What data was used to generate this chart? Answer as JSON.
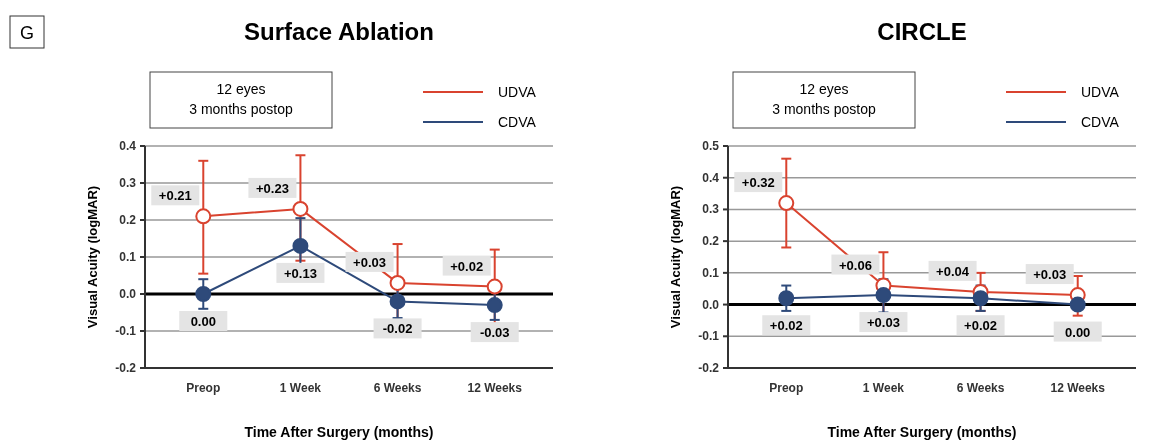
{
  "chart_data": [
    {
      "type": "line",
      "title": "Surface Ablation",
      "xlabel": "Time After Surgery (months)",
      "ylabel": "Visual Acuity (logMAR)",
      "annotations": [
        "G",
        "12 eyes\n3 months postop"
      ],
      "categories": [
        "Preop",
        "1 Week",
        "6 Weeks",
        "12 Weeks"
      ],
      "ylim": [
        -0.2,
        0.4
      ],
      "yticks": [
        {
          "value": -0.2,
          "label": "-0.2"
        },
        {
          "value": -0.1,
          "label": "-0.1"
        },
        {
          "value": 0,
          "label": "0.0"
        },
        {
          "value": 0.1,
          "label": "0.1"
        },
        {
          "value": 0.2,
          "label": "0.2"
        },
        {
          "value": 0.3,
          "label": "0.3"
        },
        {
          "value": 0.4,
          "label": "0.4"
        }
      ],
      "grid": "y",
      "legend": "top right",
      "marker": "circle",
      "ref_lines": [
        {
          "axis": "y",
          "value": 0,
          "color": "#000000"
        }
      ],
      "series": [
        {
          "name": "UDVA",
          "color": "#d9432f",
          "values": [
            0.21,
            0.23,
            0.03,
            0.02
          ],
          "value_labels": [
            "+0.21",
            "+0.23",
            "+0.03",
            "+0.02"
          ],
          "errors": [
            [
              0.055,
              0.36
            ],
            [
              0.09,
              0.375
            ],
            [
              -0.07,
              0.135
            ],
            [
              -0.08,
              0.12
            ]
          ]
        },
        {
          "name": "CDVA",
          "color": "#2e4a7a",
          "values": [
            0,
            0.13,
            -0.02,
            -0.03
          ],
          "value_labels": [
            "0.00",
            "+0.13",
            "-0.02",
            "-0.03"
          ],
          "errors": [
            [
              -0.04,
              0.04
            ],
            [
              0.06,
              0.205
            ],
            [
              -0.065,
              0.02
            ],
            [
              -0.07,
              0.015
            ]
          ]
        }
      ]
    },
    {
      "type": "line",
      "title": "CIRCLE",
      "xlabel": "Time After Surgery (months)",
      "ylabel": "Visual Acuity (logMAR)",
      "annotations": [
        "12 eyes\n3 months postop"
      ],
      "categories": [
        "Preop",
        "1 Week",
        "6 Weeks",
        "12 Weeks"
      ],
      "ylim": [
        -0.2,
        0.5
      ],
      "yticks": [
        {
          "value": -0.2,
          "label": "-0.2"
        },
        {
          "value": -0.1,
          "label": "-0.1"
        },
        {
          "value": 0,
          "label": "0.0"
        },
        {
          "value": 0.1,
          "label": "0.1"
        },
        {
          "value": 0.2,
          "label": "0.2"
        },
        {
          "value": 0.3,
          "label": "0.3"
        },
        {
          "value": 0.4,
          "label": "0.4"
        },
        {
          "value": 0.5,
          "label": "0.5"
        }
      ],
      "grid": "y",
      "legend": "top right",
      "marker": "circle",
      "ref_lines": [
        {
          "axis": "y",
          "value": 0,
          "color": "#000000"
        }
      ],
      "series": [
        {
          "name": "UDVA",
          "color": "#d9432f",
          "values": [
            0.32,
            0.06,
            0.04,
            0.03
          ],
          "value_labels": [
            "+0.32",
            "+0.06",
            "+0.04",
            "+0.03"
          ],
          "errors": [
            [
              0.18,
              0.46
            ],
            [
              -0.04,
              0.165
            ],
            [
              -0.02,
              0.1
            ],
            [
              -0.035,
              0.09
            ]
          ]
        },
        {
          "name": "CDVA",
          "color": "#2e4a7a",
          "values": [
            0.02,
            0.03,
            0.02,
            0
          ],
          "value_labels": [
            "+0.02",
            "+0.03",
            "+0.02",
            "0.00"
          ],
          "errors": [
            [
              -0.02,
              0.06
            ],
            [
              -0.025,
              0.08
            ],
            [
              -0.02,
              0.06
            ],
            null
          ]
        }
      ]
    }
  ]
}
